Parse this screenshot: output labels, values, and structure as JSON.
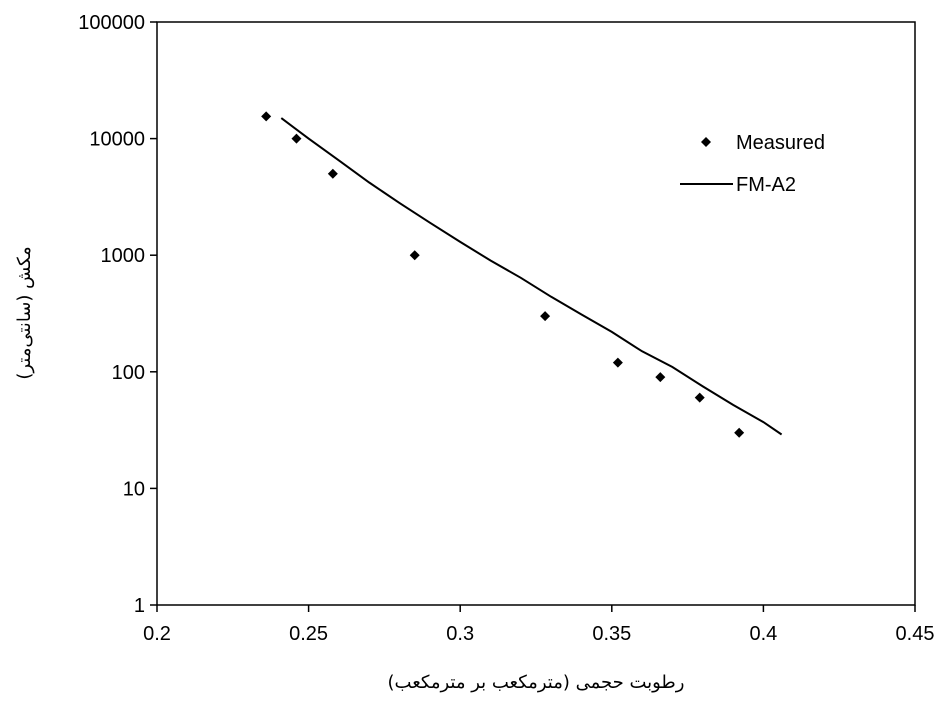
{
  "chart_data": {
    "type": "scatter",
    "title": "",
    "xlabel": "رطوبت حجمی (مترمکعب بر مترمکعب)",
    "ylabel": "مکش (سانتی‌متر)",
    "xlim": [
      0.2,
      0.45
    ],
    "ylim": [
      1,
      100000
    ],
    "yscale": "log",
    "x_ticks": [
      "0.2",
      "0.25",
      "0.3",
      "0.35",
      "0.4",
      "0.45"
    ],
    "y_ticks": [
      "1",
      "10",
      "100",
      "1000",
      "10000",
      "100000"
    ],
    "grid": false,
    "legend_position": "top-right",
    "series": [
      {
        "name": "Measured",
        "type": "scatter",
        "marker": "diamond",
        "color": "#000000",
        "x": [
          0.236,
          0.246,
          0.258,
          0.285,
          0.328,
          0.352,
          0.366,
          0.379,
          0.392
        ],
        "y": [
          15500,
          10000,
          5000,
          1000,
          300,
          120,
          90,
          60,
          30
        ]
      },
      {
        "name": "FM-A2",
        "type": "line",
        "color": "#000000",
        "x": [
          0.241,
          0.25,
          0.26,
          0.27,
          0.28,
          0.29,
          0.3,
          0.31,
          0.32,
          0.33,
          0.34,
          0.35,
          0.36,
          0.37,
          0.38,
          0.39,
          0.4,
          0.406
        ],
        "y": [
          15000,
          10000,
          6500,
          4200,
          2800,
          1900,
          1300,
          900,
          640,
          440,
          310,
          220,
          150,
          110,
          75,
          52,
          37,
          29
        ]
      }
    ]
  }
}
